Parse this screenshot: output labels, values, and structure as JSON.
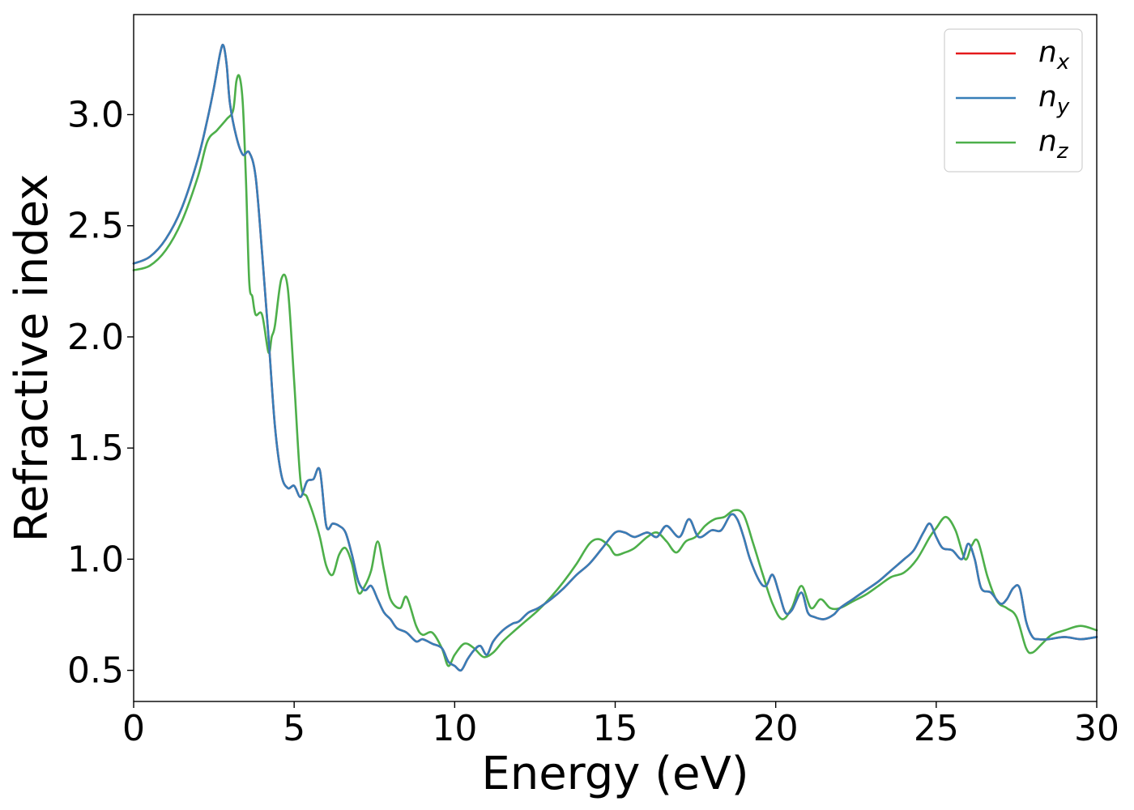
{
  "chart_data": {
    "type": "line",
    "xlabel": "Energy (eV)",
    "ylabel": "Refractive index",
    "xlim": [
      0,
      30
    ],
    "ylim": [
      0.36,
      3.45
    ],
    "xticks": [
      0,
      5,
      10,
      15,
      20,
      25,
      30
    ],
    "yticks": [
      0.5,
      1.0,
      1.5,
      2.0,
      2.5,
      3.0
    ],
    "xtick_labels": [
      "0",
      "5",
      "10",
      "15",
      "20",
      "25",
      "30"
    ],
    "ytick_labels": [
      "0.5",
      "1.0",
      "1.5",
      "2.0",
      "2.5",
      "3.0"
    ],
    "grid": false,
    "legend_position": "top-right",
    "series": [
      {
        "name": "n_x",
        "label_base": "n",
        "label_sub": "x",
        "color": "#e41a1c",
        "x": [
          0,
          0.5,
          1.0,
          1.5,
          2.0,
          2.3,
          2.5,
          2.7,
          2.8,
          2.9,
          3.0,
          3.2,
          3.4,
          3.6,
          3.8,
          4.0,
          4.2,
          4.4,
          4.6,
          4.8,
          5.0,
          5.2,
          5.4,
          5.6,
          5.8,
          6.0,
          6.2,
          6.4,
          6.6,
          6.8,
          7.0,
          7.2,
          7.4,
          7.6,
          7.8,
          8.0,
          8.2,
          8.5,
          8.8,
          9.0,
          9.3,
          9.6,
          9.8,
          10.0,
          10.2,
          10.4,
          10.6,
          10.8,
          11.0,
          11.2,
          11.5,
          11.8,
          12.0,
          12.3,
          12.6,
          13.0,
          13.4,
          13.8,
          14.2,
          14.6,
          15.0,
          15.3,
          15.6,
          16.0,
          16.3,
          16.6,
          17.0,
          17.3,
          17.6,
          18.0,
          18.3,
          18.6,
          18.8,
          19.0,
          19.2,
          19.5,
          19.7,
          19.9,
          20.1,
          20.3,
          20.5,
          20.8,
          21.0,
          21.2,
          21.5,
          21.8,
          22.0,
          22.4,
          22.8,
          23.2,
          23.6,
          24.0,
          24.3,
          24.6,
          24.8,
          25.0,
          25.2,
          25.5,
          25.8,
          26.0,
          26.2,
          26.4,
          26.7,
          27.0,
          27.2,
          27.4,
          27.6,
          27.8,
          28.0,
          28.2,
          28.5,
          29.0,
          29.5,
          30.0
        ],
        "y": [
          2.33,
          2.36,
          2.44,
          2.58,
          2.8,
          2.98,
          3.12,
          3.28,
          3.31,
          3.22,
          3.05,
          2.9,
          2.82,
          2.83,
          2.72,
          2.38,
          2.0,
          1.6,
          1.38,
          1.32,
          1.33,
          1.28,
          1.35,
          1.36,
          1.4,
          1.15,
          1.16,
          1.15,
          1.12,
          1.02,
          0.9,
          0.86,
          0.88,
          0.82,
          0.76,
          0.73,
          0.69,
          0.67,
          0.63,
          0.64,
          0.62,
          0.6,
          0.54,
          0.52,
          0.5,
          0.55,
          0.59,
          0.61,
          0.57,
          0.63,
          0.68,
          0.71,
          0.72,
          0.76,
          0.78,
          0.82,
          0.87,
          0.93,
          0.98,
          1.05,
          1.12,
          1.12,
          1.1,
          1.12,
          1.1,
          1.15,
          1.1,
          1.18,
          1.1,
          1.13,
          1.13,
          1.2,
          1.18,
          1.1,
          1.0,
          0.9,
          0.88,
          0.93,
          0.85,
          0.76,
          0.77,
          0.85,
          0.76,
          0.74,
          0.73,
          0.75,
          0.78,
          0.82,
          0.86,
          0.9,
          0.95,
          1.0,
          1.04,
          1.12,
          1.16,
          1.1,
          1.05,
          1.04,
          1.0,
          1.07,
          1.0,
          0.87,
          0.85,
          0.8,
          0.82,
          0.87,
          0.87,
          0.72,
          0.65,
          0.64,
          0.64,
          0.65,
          0.64,
          0.65
        ]
      },
      {
        "name": "n_y",
        "label_base": "n",
        "label_sub": "y",
        "color": "#377eb8",
        "x": [
          0,
          0.5,
          1.0,
          1.5,
          2.0,
          2.3,
          2.5,
          2.7,
          2.8,
          2.9,
          3.0,
          3.2,
          3.4,
          3.6,
          3.8,
          4.0,
          4.2,
          4.4,
          4.6,
          4.8,
          5.0,
          5.2,
          5.4,
          5.6,
          5.8,
          6.0,
          6.2,
          6.4,
          6.6,
          6.8,
          7.0,
          7.2,
          7.4,
          7.6,
          7.8,
          8.0,
          8.2,
          8.5,
          8.8,
          9.0,
          9.3,
          9.6,
          9.8,
          10.0,
          10.2,
          10.4,
          10.6,
          10.8,
          11.0,
          11.2,
          11.5,
          11.8,
          12.0,
          12.3,
          12.6,
          13.0,
          13.4,
          13.8,
          14.2,
          14.6,
          15.0,
          15.3,
          15.6,
          16.0,
          16.3,
          16.6,
          17.0,
          17.3,
          17.6,
          18.0,
          18.3,
          18.6,
          18.8,
          19.0,
          19.2,
          19.5,
          19.7,
          19.9,
          20.1,
          20.3,
          20.5,
          20.8,
          21.0,
          21.2,
          21.5,
          21.8,
          22.0,
          22.4,
          22.8,
          23.2,
          23.6,
          24.0,
          24.3,
          24.6,
          24.8,
          25.0,
          25.2,
          25.5,
          25.8,
          26.0,
          26.2,
          26.4,
          26.7,
          27.0,
          27.2,
          27.4,
          27.6,
          27.8,
          28.0,
          28.2,
          28.5,
          29.0,
          29.5,
          30.0
        ],
        "y": [
          2.33,
          2.36,
          2.44,
          2.58,
          2.8,
          2.98,
          3.12,
          3.28,
          3.31,
          3.22,
          3.05,
          2.9,
          2.82,
          2.83,
          2.72,
          2.38,
          2.0,
          1.6,
          1.38,
          1.32,
          1.33,
          1.28,
          1.35,
          1.36,
          1.4,
          1.15,
          1.16,
          1.15,
          1.12,
          1.02,
          0.9,
          0.86,
          0.88,
          0.82,
          0.76,
          0.73,
          0.69,
          0.67,
          0.63,
          0.64,
          0.62,
          0.6,
          0.54,
          0.52,
          0.5,
          0.55,
          0.59,
          0.61,
          0.57,
          0.63,
          0.68,
          0.71,
          0.72,
          0.76,
          0.78,
          0.82,
          0.87,
          0.93,
          0.98,
          1.05,
          1.12,
          1.12,
          1.1,
          1.12,
          1.1,
          1.15,
          1.1,
          1.18,
          1.1,
          1.13,
          1.13,
          1.2,
          1.18,
          1.1,
          1.0,
          0.9,
          0.88,
          0.93,
          0.85,
          0.76,
          0.77,
          0.85,
          0.76,
          0.74,
          0.73,
          0.75,
          0.78,
          0.82,
          0.86,
          0.9,
          0.95,
          1.0,
          1.04,
          1.12,
          1.16,
          1.1,
          1.05,
          1.04,
          1.0,
          1.07,
          1.0,
          0.87,
          0.85,
          0.8,
          0.82,
          0.87,
          0.87,
          0.72,
          0.65,
          0.64,
          0.64,
          0.65,
          0.64,
          0.65
        ]
      },
      {
        "name": "n_z",
        "label_base": "n",
        "label_sub": "z",
        "color": "#4daf4a",
        "x": [
          0,
          0.5,
          1.0,
          1.5,
          2.0,
          2.3,
          2.6,
          2.9,
          3.1,
          3.2,
          3.3,
          3.4,
          3.5,
          3.6,
          3.7,
          3.8,
          4.0,
          4.2,
          4.3,
          4.4,
          4.6,
          4.8,
          5.0,
          5.2,
          5.4,
          5.6,
          5.8,
          6.0,
          6.2,
          6.4,
          6.6,
          6.8,
          7.0,
          7.2,
          7.4,
          7.6,
          7.8,
          8.0,
          8.3,
          8.5,
          8.8,
          9.0,
          9.3,
          9.6,
          9.8,
          10.0,
          10.3,
          10.6,
          10.9,
          11.2,
          11.5,
          11.8,
          12.2,
          12.6,
          13.0,
          13.4,
          13.8,
          14.2,
          14.5,
          14.8,
          15.0,
          15.3,
          15.6,
          16.0,
          16.3,
          16.6,
          16.9,
          17.2,
          17.5,
          17.8,
          18.1,
          18.4,
          18.7,
          19.0,
          19.3,
          19.6,
          19.9,
          20.2,
          20.5,
          20.8,
          21.1,
          21.4,
          21.7,
          22.0,
          22.4,
          22.8,
          23.2,
          23.6,
          24.0,
          24.4,
          24.8,
          25.0,
          25.3,
          25.6,
          25.9,
          26.1,
          26.3,
          26.6,
          26.9,
          27.2,
          27.5,
          27.8,
          28.0,
          28.3,
          28.6,
          29.0,
          29.5,
          30.0
        ],
        "y": [
          2.3,
          2.32,
          2.39,
          2.52,
          2.72,
          2.88,
          2.93,
          2.98,
          3.02,
          3.15,
          3.17,
          3.05,
          2.7,
          2.25,
          2.18,
          2.1,
          2.1,
          1.93,
          2.0,
          2.05,
          2.26,
          2.22,
          1.8,
          1.35,
          1.28,
          1.2,
          1.1,
          0.97,
          0.93,
          1.02,
          1.05,
          0.98,
          0.85,
          0.88,
          0.95,
          1.08,
          0.95,
          0.82,
          0.78,
          0.83,
          0.7,
          0.66,
          0.67,
          0.6,
          0.52,
          0.57,
          0.62,
          0.6,
          0.56,
          0.58,
          0.63,
          0.67,
          0.72,
          0.77,
          0.83,
          0.9,
          0.98,
          1.07,
          1.09,
          1.06,
          1.02,
          1.03,
          1.05,
          1.1,
          1.12,
          1.08,
          1.03,
          1.08,
          1.1,
          1.15,
          1.18,
          1.19,
          1.22,
          1.2,
          1.07,
          0.93,
          0.8,
          0.73,
          0.78,
          0.88,
          0.78,
          0.82,
          0.78,
          0.78,
          0.81,
          0.84,
          0.88,
          0.92,
          0.94,
          1.0,
          1.1,
          1.14,
          1.19,
          1.13,
          1.0,
          1.06,
          1.08,
          0.92,
          0.81,
          0.78,
          0.74,
          0.6,
          0.58,
          0.62,
          0.66,
          0.68,
          0.7,
          0.68
        ]
      }
    ]
  }
}
